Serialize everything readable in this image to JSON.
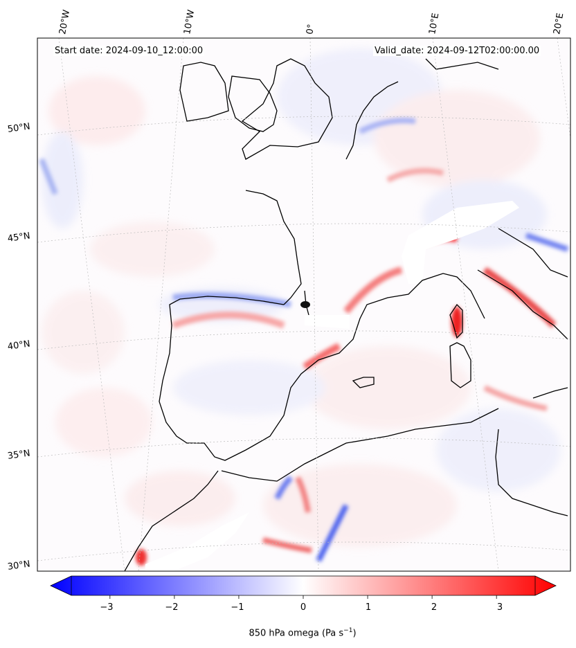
{
  "map": {
    "start_date": "Start date: 2024-09-10_12:00:00",
    "valid_date": "Valid_date: 2024-09-12T02:00:00.00",
    "lon_labels": [
      "20°W",
      "10°W",
      "0°",
      "10°E",
      "20°E"
    ],
    "lat_labels": [
      "50°N",
      "45°N",
      "40°N",
      "35°N",
      "30°N"
    ],
    "field": "850 hPa omega"
  },
  "colorbar": {
    "label_main": "850 hPa omega (Pa s",
    "label_sup": "−1",
    "label_end": ")",
    "ticks": [
      "−3",
      "−2",
      "−1",
      "0",
      "1",
      "2",
      "3"
    ],
    "tick_values": [
      -3,
      -2,
      -1,
      0,
      1,
      2,
      3
    ],
    "range": [
      -3.6,
      3.6
    ],
    "colors": {
      "negative": "#0000ff",
      "zero": "#ffffff",
      "positive": "#ff0000"
    }
  }
}
